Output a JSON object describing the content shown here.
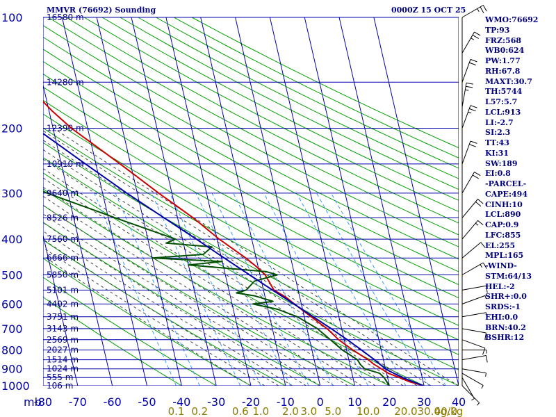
{
  "header": {
    "title": "MMVR (76692) Sounding",
    "datetime": "0000Z 15 OCT 25"
  },
  "indices": [
    "WMO:76692",
    "TP:93",
    "FRZ:568",
    "WB0:624",
    "PW:1.77",
    "RH:67.8",
    "MAXT:30.7",
    "TH:5744",
    "L57:5.7",
    "LCL:913",
    "LI:-2.7",
    "SI:2.3",
    "TT:43",
    "KI:31",
    "SW:189",
    "EI:0.8",
    "-PARCEL-",
    "CAPE:494",
    "CINH:10",
    "LCL:890",
    "CAP:0.9",
    "LFC:855",
    "EL:255",
    "MPL:165",
    "-WIND-",
    "STM:64/13",
    "HEL:-2",
    "SHR+:0.0",
    "SRDS:-1",
    "EHI:0.0",
    "BRN:40.2",
    "BSHR:12"
  ],
  "colors": {
    "isobar": "#0000aa",
    "isotherm": "#0000aa",
    "dry_adiabat": "#00a000",
    "moist_adiabat": "#444444",
    "mixing_ratio": "#3399ff",
    "temperature": "#cc0000",
    "dewpoint": "#005000",
    "parcel": "#0000aa",
    "wind": "#000000",
    "mixing_label": "#8b7a00"
  },
  "chart_data": {
    "type": "skew-t log-p sounding",
    "title": "MMVR (76692) Sounding",
    "y_axis_label": "mb",
    "x_axis_label": "°C",
    "pressure_range_mb": [
      1000,
      100
    ],
    "temperature_range_c": [
      -80,
      40
    ],
    "pressure_labels": [
      "100",
      "200",
      "300",
      "400",
      "500",
      "600",
      "700",
      "800",
      "900",
      "1000"
    ],
    "temperature_ticks": [
      "-80",
      "-70",
      "-60",
      "-50",
      "-40",
      "-30",
      "-20",
      "-10",
      "0",
      "10",
      "20",
      "30",
      "40"
    ],
    "mixing_ratio_units": "g/kg",
    "mixing_ratio_labels": [
      "0.1",
      "0.2",
      "0.6",
      "1.0",
      "2.0",
      "3.0",
      "5.0",
      "10.0",
      "20.0",
      "30.0",
      "40.0"
    ],
    "mixing_ratio_values": [
      0.1,
      0.2,
      0.6,
      1.0,
      2.0,
      3.0,
      5.0,
      10.0,
      20.0,
      30.0,
      40.0
    ],
    "heights": [
      {
        "p": 100,
        "label": "16580 m"
      },
      {
        "p": 150,
        "label": "14280 m"
      },
      {
        "p": 200,
        "label": "12390 m"
      },
      {
        "p": 250,
        "label": "10910 m"
      },
      {
        "p": 300,
        "label": "9640 m"
      },
      {
        "p": 350,
        "label": "8526 m"
      },
      {
        "p": 400,
        "label": "7560 m"
      },
      {
        "p": 450,
        "label": "6666 m"
      },
      {
        "p": 500,
        "label": "5850 m"
      },
      {
        "p": 550,
        "label": "5101 m"
      },
      {
        "p": 600,
        "label": "4402 m"
      },
      {
        "p": 650,
        "label": "3751 m"
      },
      {
        "p": 700,
        "label": "3143 m"
      },
      {
        "p": 750,
        "label": "2569 m"
      },
      {
        "p": 800,
        "label": "2027 m"
      },
      {
        "p": 850,
        "label": "1514 m"
      },
      {
        "p": 900,
        "label": "1024 m"
      },
      {
        "p": 950,
        "label": "555 m"
      },
      {
        "p": 1000,
        "label": "106 m"
      }
    ],
    "series": [
      {
        "name": "Temperature",
        "points": [
          [
            1000,
            29.8
          ],
          [
            975,
            26
          ],
          [
            950,
            23.4
          ],
          [
            925,
            20.5
          ],
          [
            900,
            18.8
          ],
          [
            875,
            17
          ],
          [
            850,
            15.6
          ],
          [
            800,
            11.8
          ],
          [
            750,
            8.4
          ],
          [
            700,
            5.8
          ],
          [
            650,
            2
          ],
          [
            600,
            -2
          ],
          [
            575,
            -4
          ],
          [
            550,
            -7
          ],
          [
            500,
            -8.5
          ],
          [
            475,
            -10.5
          ],
          [
            450,
            -13
          ],
          [
            400,
            -19.4
          ],
          [
            350,
            -25.5
          ],
          [
            300,
            -33.8
          ],
          [
            250,
            -43
          ],
          [
            200,
            -54.7
          ],
          [
            180,
            -59
          ],
          [
            160,
            -63
          ],
          [
            150,
            -67.8
          ],
          [
            140,
            -71
          ],
          [
            125,
            -74
          ],
          [
            115,
            -75.5
          ],
          [
            105,
            -76.5
          ],
          [
            100,
            -76.5
          ]
        ]
      },
      {
        "name": "Dewpoint",
        "points": [
          [
            1000,
            20
          ],
          [
            975,
            19.5
          ],
          [
            950,
            19
          ],
          [
            925,
            18
          ],
          [
            900,
            14
          ],
          [
            875,
            13
          ],
          [
            850,
            12.5
          ],
          [
            800,
            8.8
          ],
          [
            750,
            6
          ],
          [
            700,
            3
          ],
          [
            650,
            -2
          ],
          [
            620,
            -7.2
          ],
          [
            600,
            -14
          ],
          [
            590,
            -8
          ],
          [
            570,
            -13
          ],
          [
            560,
            -18
          ],
          [
            550,
            -15
          ],
          [
            520,
            -12
          ],
          [
            500,
            -5
          ],
          [
            490,
            -8
          ],
          [
            470,
            -30
          ],
          [
            460,
            -20
          ],
          [
            450,
            -40
          ],
          [
            440,
            -25
          ],
          [
            420,
            -22
          ],
          [
            410,
            -35
          ],
          [
            400,
            -32
          ],
          [
            350,
            -48
          ],
          [
            300,
            -66
          ],
          [
            250,
            -83
          ],
          [
            200,
            -95
          ]
        ]
      },
      {
        "name": "Parcel",
        "points": [
          [
            1000,
            29.8
          ],
          [
            950,
            24.3
          ],
          [
            913,
            21
          ],
          [
            900,
            20
          ],
          [
            850,
            17.4
          ],
          [
            800,
            14.3
          ],
          [
            750,
            10.9
          ],
          [
            700,
            7
          ],
          [
            650,
            2.6
          ],
          [
            600,
            -2.1
          ],
          [
            550,
            -7.4
          ],
          [
            500,
            -13
          ],
          [
            450,
            -19.2
          ],
          [
            400,
            -26
          ],
          [
            350,
            -33.9
          ],
          [
            300,
            -43
          ],
          [
            250,
            -53
          ],
          [
            200,
            -65
          ],
          [
            150,
            -80
          ],
          [
            120,
            -91
          ],
          [
            100,
            -99
          ]
        ]
      }
    ],
    "winds": [
      {
        "p": 1000,
        "dir": 135,
        "kt": 5
      },
      {
        "p": 950,
        "dir": 150,
        "kt": 8
      },
      {
        "p": 925,
        "dir": 120,
        "kt": 5
      },
      {
        "p": 900,
        "dir": 100,
        "kt": 5
      },
      {
        "p": 850,
        "dir": 80,
        "kt": 10
      },
      {
        "p": 800,
        "dir": 90,
        "kt": 8
      },
      {
        "p": 750,
        "dir": 110,
        "kt": 10
      },
      {
        "p": 700,
        "dir": 100,
        "kt": 10
      },
      {
        "p": 650,
        "dir": 80,
        "kt": 10
      },
      {
        "p": 600,
        "dir": 70,
        "kt": 8
      },
      {
        "p": 550,
        "dir": 80,
        "kt": 10
      },
      {
        "p": 500,
        "dir": 60,
        "kt": 15
      },
      {
        "p": 450,
        "dir": 50,
        "kt": 10
      },
      {
        "p": 400,
        "dir": 40,
        "kt": 15
      },
      {
        "p": 350,
        "dir": 40,
        "kt": 20
      },
      {
        "p": 300,
        "dir": 30,
        "kt": 20
      },
      {
        "p": 250,
        "dir": 20,
        "kt": 20
      },
      {
        "p": 200,
        "dir": 20,
        "kt": 25
      },
      {
        "p": 175,
        "dir": 10,
        "kt": 25
      },
      {
        "p": 150,
        "dir": 20,
        "kt": 20
      },
      {
        "p": 125,
        "dir": 30,
        "kt": 25
      },
      {
        "p": 100,
        "dir": 60,
        "kt": 25
      }
    ]
  }
}
